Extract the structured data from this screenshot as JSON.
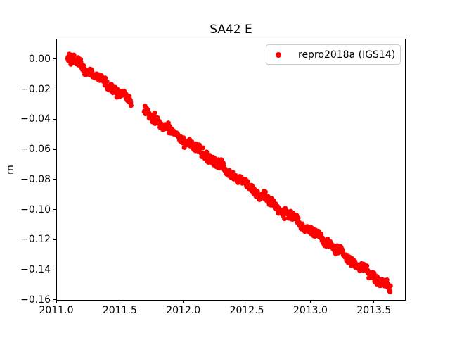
{
  "window": {
    "background": "#ffffff"
  },
  "chart_data": {
    "type": "scatter",
    "title": "SA42 E",
    "xlabel": "",
    "ylabel": "m",
    "xlim": [
      2011.0,
      2013.75
    ],
    "ylim": [
      -0.1605,
      0.0135
    ],
    "grid": false,
    "xticks": [
      2011.0,
      2011.5,
      2012.0,
      2012.5,
      2013.0,
      2013.5
    ],
    "xtick_labels": [
      "2011.0",
      "2011.5",
      "2012.0",
      "2012.5",
      "2013.0",
      "2013.5"
    ],
    "yticks": [
      0.0,
      -0.02,
      -0.04,
      -0.06,
      -0.08,
      -0.1,
      -0.12,
      -0.14,
      -0.16
    ],
    "ytick_labels": [
      "0.00",
      "−0.02",
      "−0.04",
      "−0.06",
      "−0.08",
      "−0.10",
      "−0.12",
      "−0.14",
      "−0.16"
    ],
    "legend": {
      "position": "upper right",
      "label": "repro2018a (IGS14)",
      "marker_color": "#ff0000",
      "border_color": "#cccccc"
    },
    "series": [
      {
        "name": "repro2018a (IGS14)",
        "color": "#ff0000",
        "marker": "dot",
        "marker_radius_px": 3.5,
        "x_start": 2011.09,
        "x_end": 2013.63,
        "y_start": 0.002,
        "y_end": -0.1525,
        "gaps": [
          [
            2011.59,
            2011.69
          ]
        ],
        "samples_per_year": 365,
        "noise_std": 0.0014,
        "wander": [
          {
            "amp": 0.001,
            "freq": 5.3,
            "phase": 0.7
          },
          {
            "amp": 0.0006,
            "freq": 11.7,
            "phase": 2.1
          }
        ],
        "seed": 42
      }
    ]
  },
  "icons": {
    "legend_marker": "red-dot-icon"
  }
}
